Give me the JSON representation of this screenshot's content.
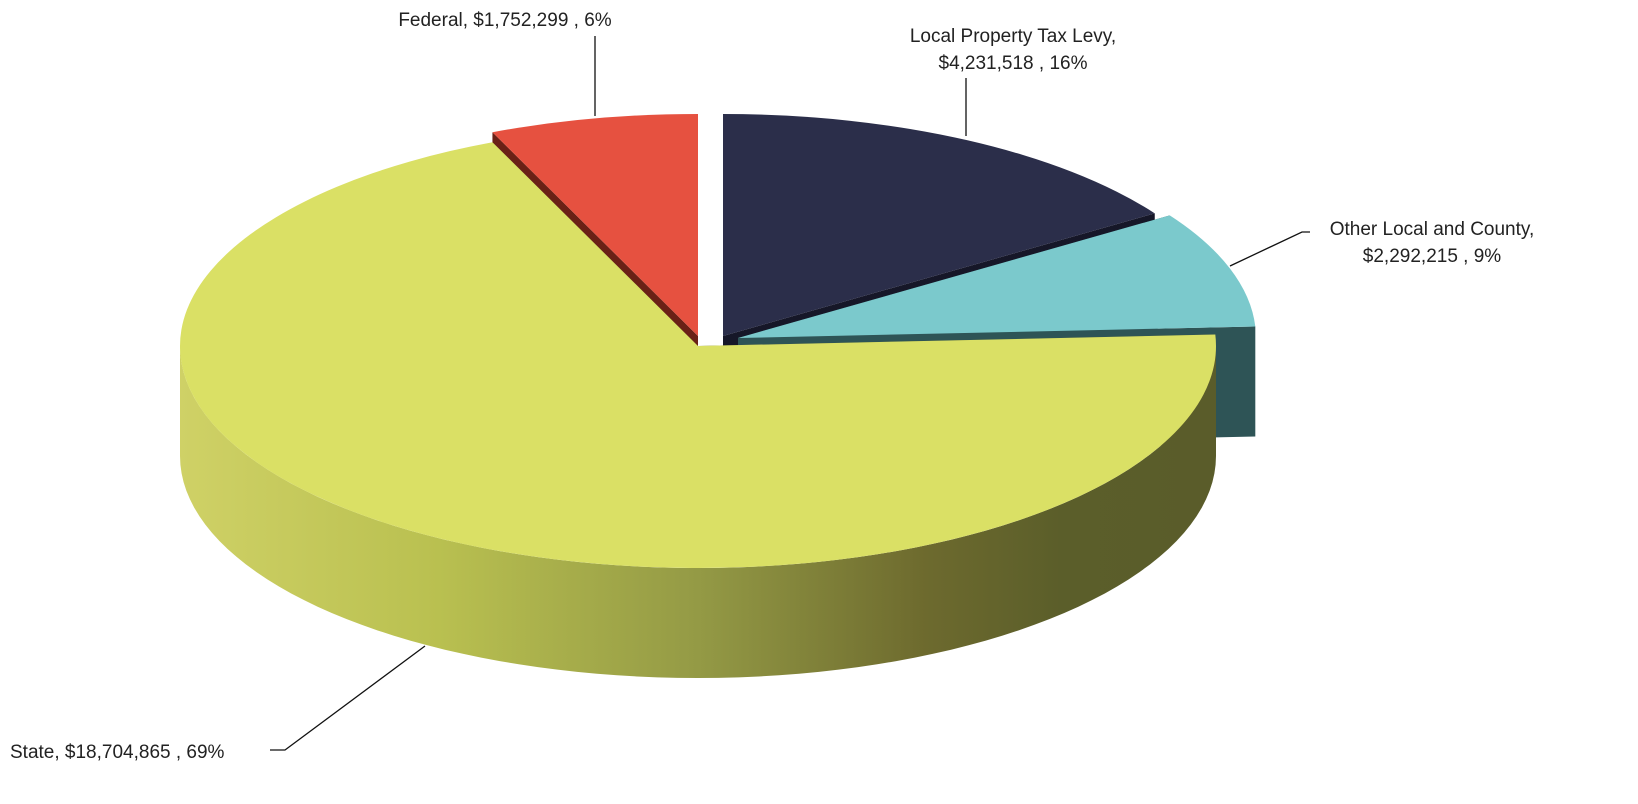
{
  "chart_data": {
    "type": "pie",
    "variant": "3d-exploded",
    "title": "",
    "slices": [
      {
        "label": "Local Property Tax Levy,",
        "label_lines": [
          "Local Property Tax Levy,",
          "$4,231,518 , 16%"
        ],
        "value": 4231518,
        "percent": 16,
        "color": "#2b2e4a",
        "side_color": "#161728"
      },
      {
        "label": "Other Local and County,",
        "label_lines": [
          "Other  Local and County,",
          "$2,292,215 , 9%"
        ],
        "value": 2292215,
        "percent": 9,
        "color": "#7bc9cc",
        "side_color": "#2e5456"
      },
      {
        "label": "State,",
        "label_lines": [
          "State,  $18,704,865 , 69%"
        ],
        "value": 18704865,
        "percent": 69,
        "color": "#dae065",
        "side_color": "#5b5e2a"
      },
      {
        "label": "Federal,",
        "label_lines": [
          "Federal,  $1,752,299 , 6%"
        ],
        "value": 1752299,
        "percent": 6,
        "color": "#e65140",
        "side_color": "#6a2116"
      }
    ],
    "legend": "none"
  }
}
